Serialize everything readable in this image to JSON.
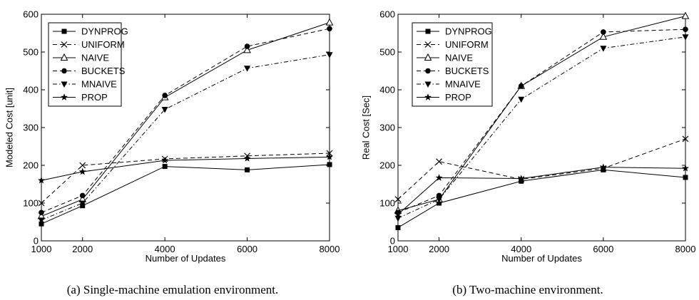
{
  "chart_data": [
    {
      "type": "line",
      "caption": "(a) Single-machine emulation environment.",
      "xlabel": "Number of Updates",
      "ylabel": "Modeled Cost  [unit]",
      "x": [
        1000,
        2000,
        4000,
        6000,
        8000
      ],
      "xticks": [
        "1000",
        "2000",
        "4000",
        "6000",
        "8000"
      ],
      "ylim": [
        0,
        600
      ],
      "yticks": [
        0,
        100,
        200,
        300,
        400,
        500,
        600
      ],
      "legend_position": "top-left",
      "series": [
        {
          "name": "DYNPROG",
          "marker": "square",
          "dash": "solid",
          "values": [
            45,
            93,
            197,
            188,
            202
          ]
        },
        {
          "name": "UNIFORM",
          "marker": "x",
          "dash": "dashed",
          "values": [
            100,
            200,
            217,
            225,
            232
          ]
        },
        {
          "name": "NAIVE",
          "marker": "triangle-up",
          "dash": "solid",
          "values": [
            65,
            110,
            380,
            505,
            578
          ]
        },
        {
          "name": "BUCKETS",
          "marker": "circle",
          "dash": "dashed",
          "values": [
            75,
            120,
            385,
            515,
            562
          ]
        },
        {
          "name": "MNAIVE",
          "marker": "triangle-down",
          "dash": "dashdot",
          "values": [
            55,
            100,
            348,
            457,
            493
          ]
        },
        {
          "name": "PROP",
          "marker": "star",
          "dash": "solid",
          "values": [
            160,
            183,
            213,
            218,
            222
          ]
        }
      ]
    },
    {
      "type": "line",
      "caption": "(b) Two-machine environment.",
      "xlabel": "Number of Updates",
      "ylabel": "Real Cost [Sec]",
      "x": [
        1000,
        2000,
        4000,
        6000,
        8000
      ],
      "xticks": [
        "1000",
        "2000",
        "4000",
        "6000",
        "8000"
      ],
      "ylim": [
        0,
        600
      ],
      "yticks": [
        0,
        100,
        200,
        300,
        400,
        500,
        600
      ],
      "legend_position": "top-left",
      "series": [
        {
          "name": "DYNPROG",
          "marker": "square",
          "dash": "solid",
          "values": [
            35,
            100,
            158,
            188,
            168
          ]
        },
        {
          "name": "UNIFORM",
          "marker": "x",
          "dash": "dashed",
          "values": [
            110,
            210,
            163,
            192,
            270
          ]
        },
        {
          "name": "NAIVE",
          "marker": "triangle-up",
          "dash": "solid",
          "values": [
            80,
            110,
            410,
            540,
            595
          ]
        },
        {
          "name": "BUCKETS",
          "marker": "circle",
          "dash": "dashed",
          "values": [
            75,
            120,
            410,
            553,
            560
          ]
        },
        {
          "name": "MNAIVE",
          "marker": "triangle-down",
          "dash": "dashdot",
          "values": [
            60,
            110,
            375,
            510,
            540
          ]
        },
        {
          "name": "PROP",
          "marker": "star",
          "dash": "solid",
          "values": [
            70,
            167,
            165,
            195,
            192
          ]
        }
      ]
    }
  ]
}
